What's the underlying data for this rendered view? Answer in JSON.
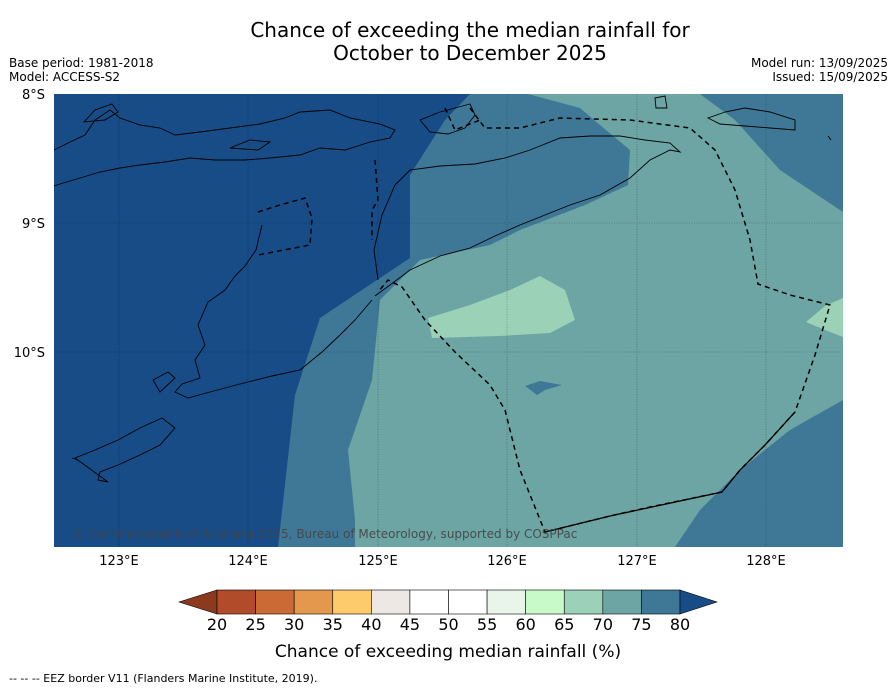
{
  "title_line1": "Chance of exceeding the median rainfall for",
  "title_line2": "October to December 2025",
  "meta_left": {
    "base_period": "Base period: 1981-2018",
    "model": "Model: ACCESS-S2"
  },
  "meta_right": {
    "model_run": "Model run: 13/09/2025",
    "issued": "Issued: 15/09/2025"
  },
  "map": {
    "lat_labels": [
      "8°S",
      "9°S",
      "10°S"
    ],
    "lon_labels": [
      "123°E",
      "124°E",
      "125°E",
      "126°E",
      "127°E",
      "128°E"
    ],
    "watermark": "© Commonwealth of Australia 2025, Bureau of Meteorology, supported by COSPPac"
  },
  "colorbar": {
    "ticks": [
      "20",
      "25",
      "30",
      "35",
      "40",
      "45",
      "50",
      "55",
      "60",
      "65",
      "70",
      "75",
      "80"
    ],
    "colors": [
      "#8c3a1e",
      "#b24b2a",
      "#cc6a35",
      "#e3984e",
      "#fdca6c",
      "#ede8e3",
      "#ffffff",
      "#ffffff",
      "#e9f5e8",
      "#c7fac8",
      "#9bd1b7",
      "#6da4a4",
      "#3f7896",
      "#174c87"
    ],
    "title": "Chance of exceeding median rainfall (%)"
  },
  "footer": "--  --  -- EEZ border V11 (Flanders Marine Institute, 2019)."
}
